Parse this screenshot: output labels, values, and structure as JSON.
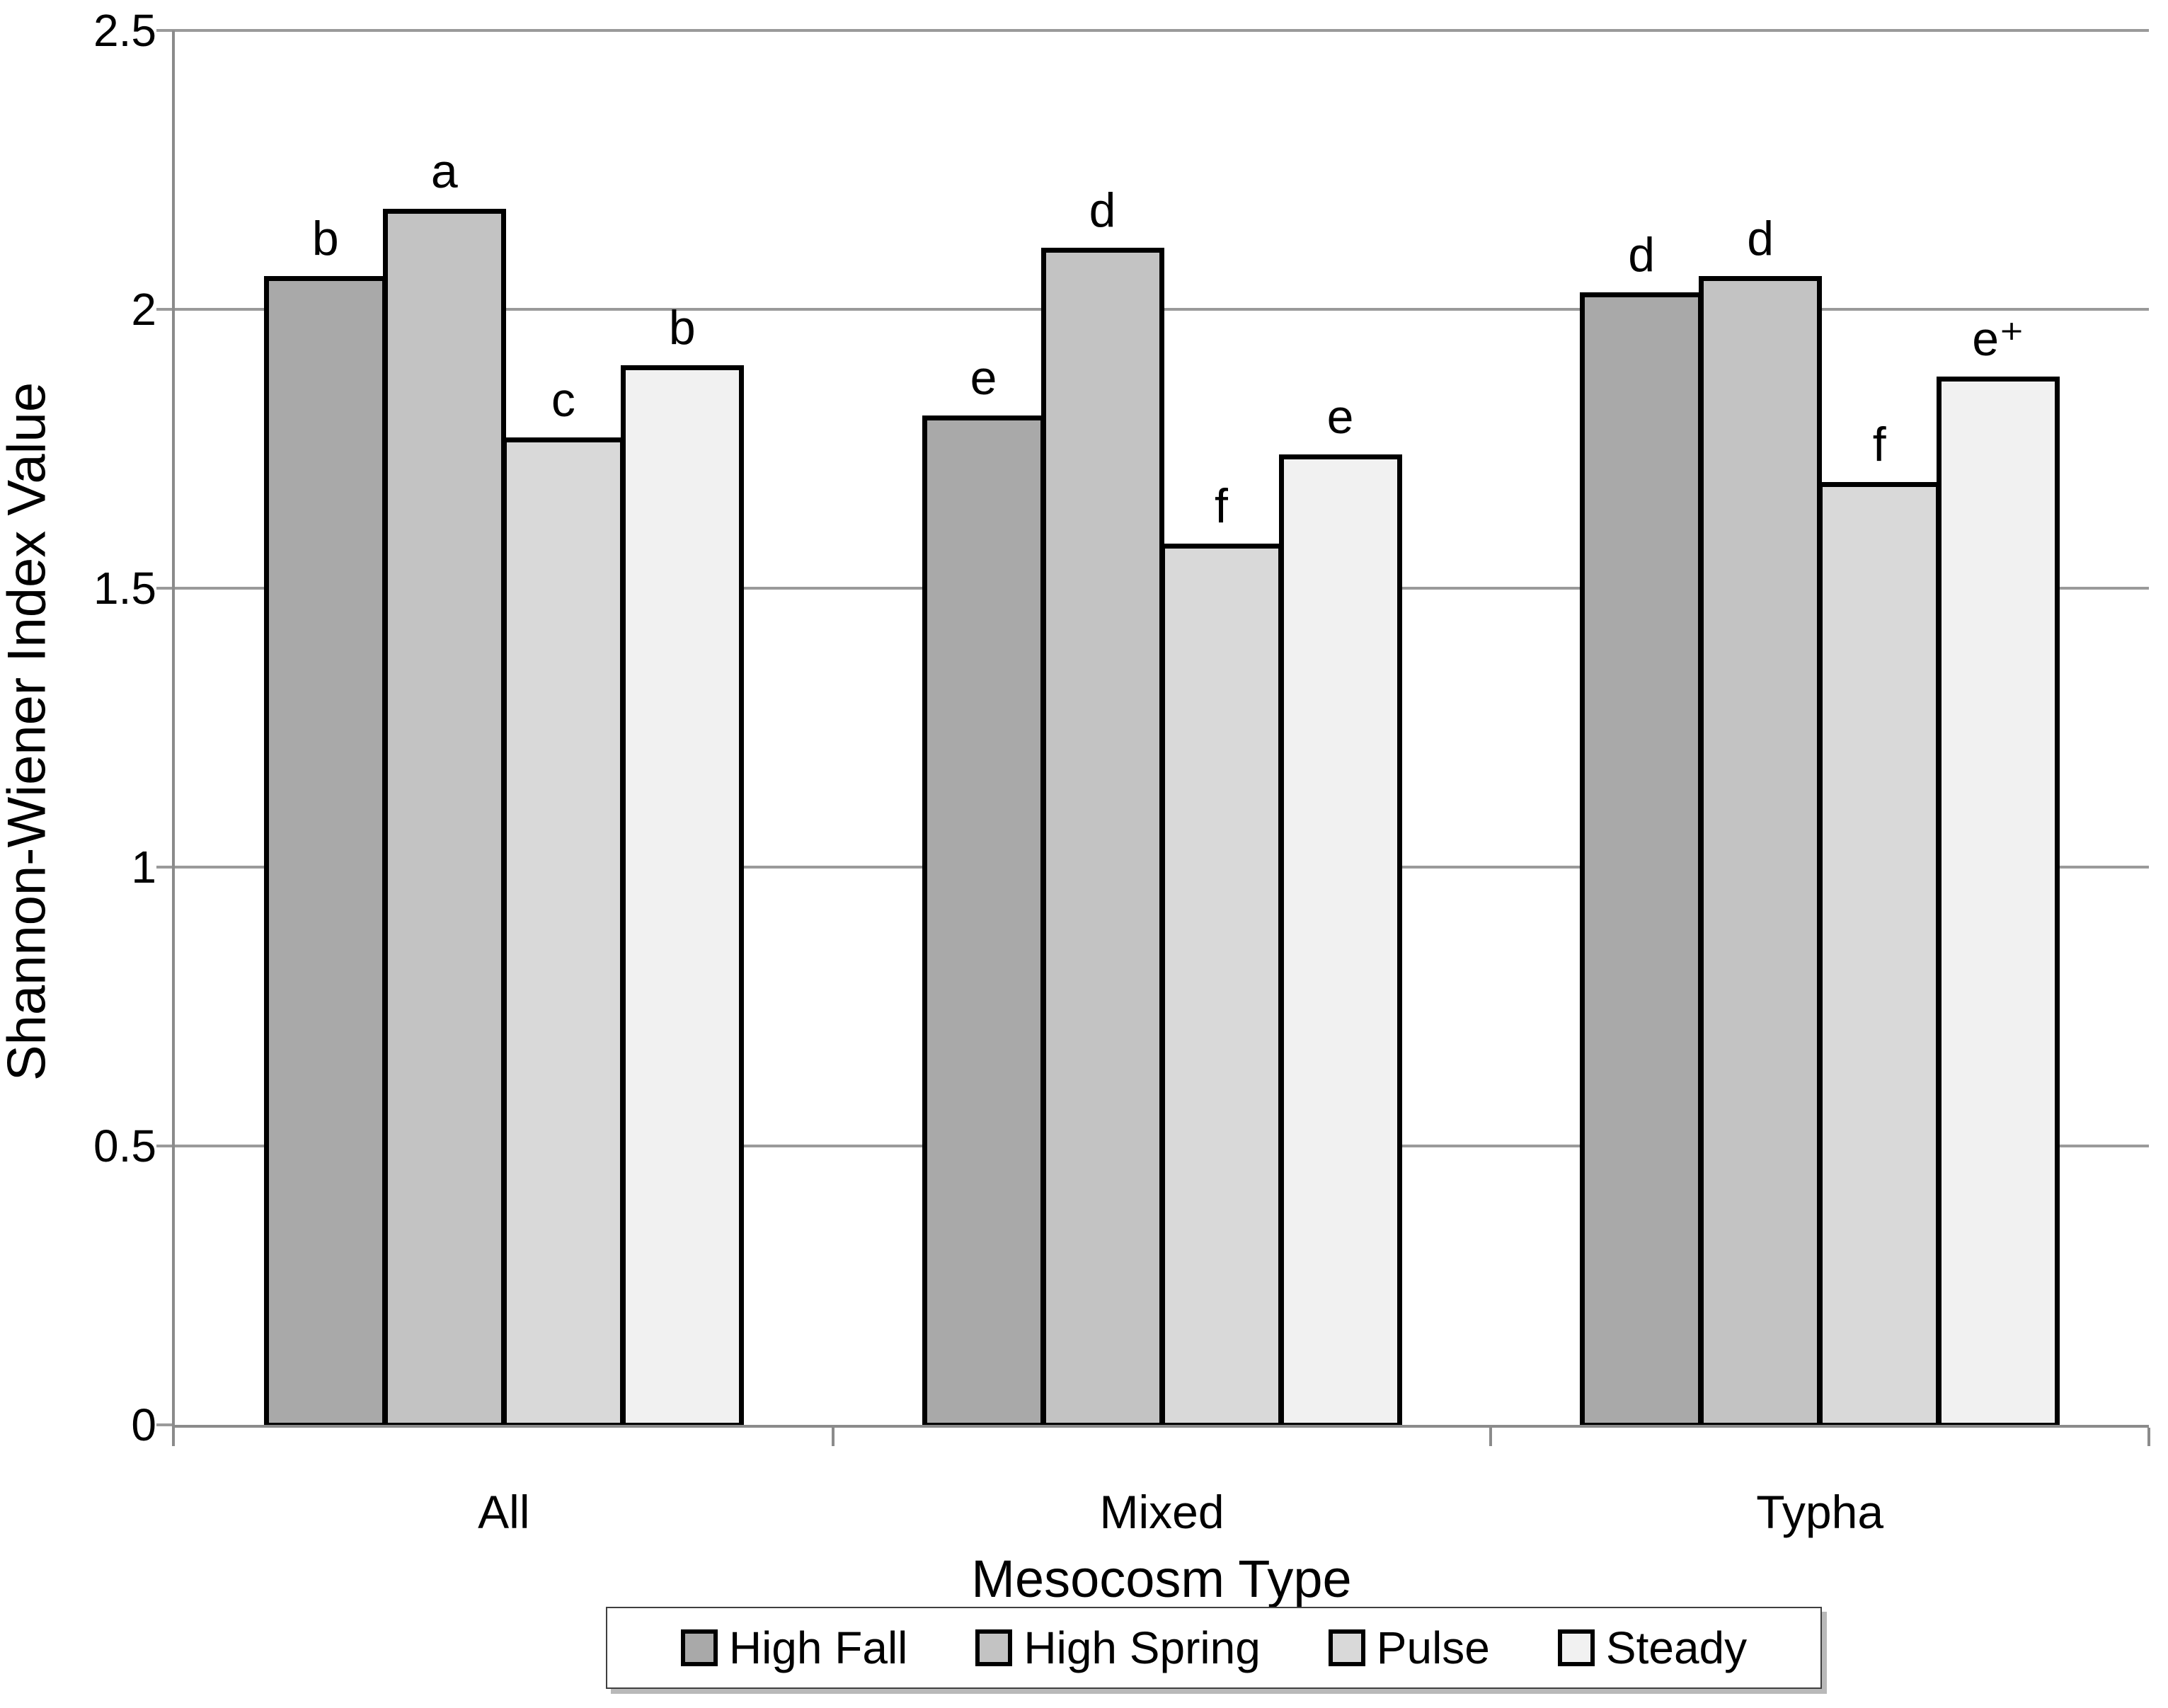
{
  "chart_data": {
    "type": "bar",
    "title": "",
    "xlabel": "Mesocosm Type",
    "ylabel": "Shannon-Wiener Index Value",
    "categories": [
      "All",
      "Mixed",
      "Typha"
    ],
    "series": [
      {
        "name": "High Fall",
        "color": "#a9a9a9",
        "values": [
          2.06,
          1.81,
          2.03
        ],
        "sig_labels": [
          "b",
          "e",
          "d"
        ]
      },
      {
        "name": "High Spring",
        "color": "#c3c3c3",
        "values": [
          2.18,
          2.11,
          2.06
        ],
        "sig_labels": [
          "a",
          "d",
          "d"
        ]
      },
      {
        "name": "Pulse",
        "color": "#d9d9d9",
        "values": [
          1.77,
          1.58,
          1.69
        ],
        "sig_labels": [
          "c",
          "f",
          "f"
        ]
      },
      {
        "name": "Steady",
        "color": "#f1f1f1",
        "values": [
          1.9,
          1.74,
          1.88
        ],
        "sig_labels": [
          "b",
          "e",
          "e⁺"
        ]
      }
    ],
    "ylim": [
      0,
      2.5
    ],
    "ytick_step": 0.5,
    "ytick_labels": [
      "0",
      "0.5",
      "1",
      "1.5",
      "2",
      "2.5"
    ],
    "grid": true,
    "legend_position": "bottom",
    "bar_outline_color": "#000000",
    "gridline_color": "#9a9a9a"
  }
}
